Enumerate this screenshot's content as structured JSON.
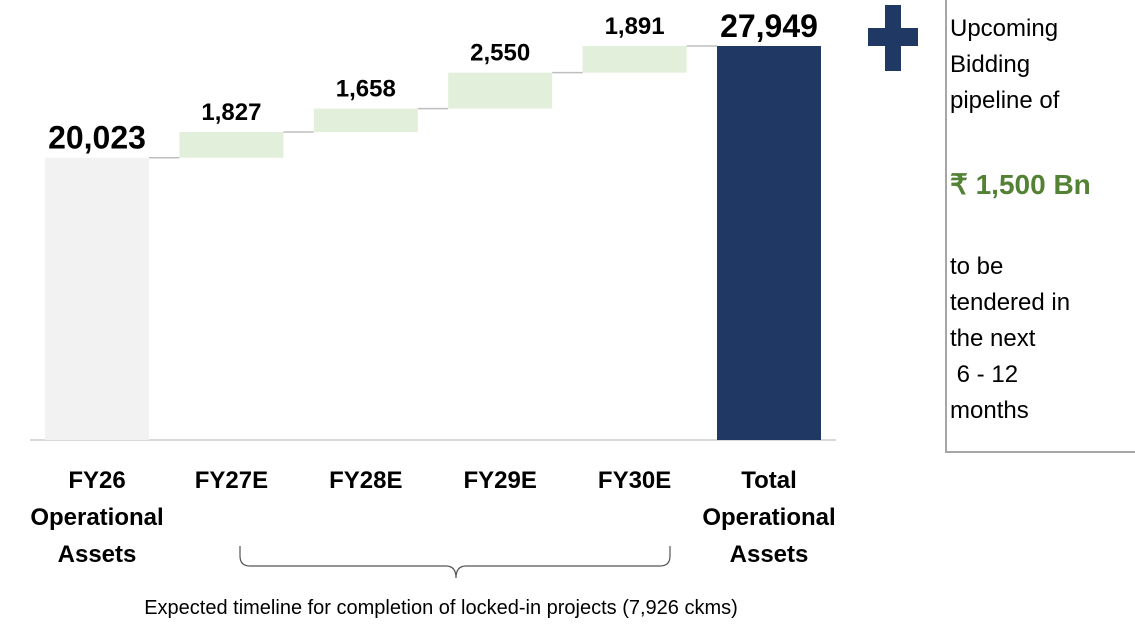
{
  "chart_data": {
    "type": "waterfall",
    "categories": [
      [
        "FY26",
        "Operational",
        "Assets"
      ],
      [
        "FY27E"
      ],
      [
        "FY28E"
      ],
      [
        "FY29E"
      ],
      [
        "FY30E"
      ],
      [
        "Total",
        "Operational",
        "Assets"
      ]
    ],
    "values": [
      20023,
      1827,
      1658,
      2550,
      1891,
      27949
    ],
    "value_labels": [
      "20,023",
      "1,827",
      "1,658",
      "2,550",
      "1,891",
      "27,949"
    ],
    "measure": [
      "absolute",
      "relative",
      "relative",
      "relative",
      "relative",
      "total"
    ],
    "colors": [
      "#f2f2f2",
      "#e2efda",
      "#e2efda",
      "#e2efda",
      "#e2efda",
      "#203864"
    ],
    "annotation": "Expected timeline for completion of locked-in projects (7,926 ckms)",
    "side_note": {
      "lines_before": [
        "Upcoming",
        "Bidding",
        "pipeline of"
      ],
      "highlight": "₹ 1,500 Bn",
      "lines_after": [
        "to be",
        "tendered in",
        "the next",
        " 6 - 12",
        "months"
      ]
    }
  }
}
